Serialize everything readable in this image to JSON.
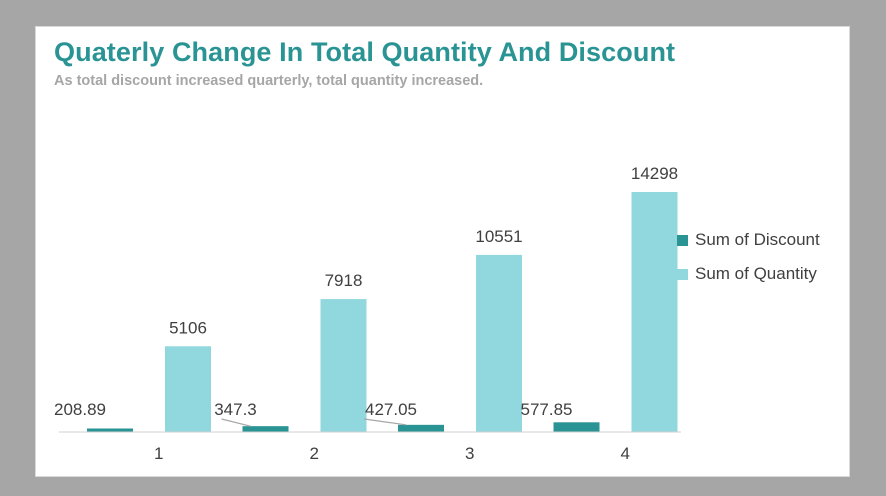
{
  "title": "Quaterly Change In Total Quantity And Discount",
  "subtitle": "As total discount increased quarterly, total quantity increased.",
  "colors": {
    "discount": "#2a9393",
    "quantity": "#91d7de",
    "title": "#2a9393",
    "subtitle": "#a6a6a6"
  },
  "chart_data": {
    "type": "bar",
    "categories": [
      "1",
      "2",
      "3",
      "4"
    ],
    "series": [
      {
        "name": "Sum of Discount",
        "values": [
          208.89,
          347.3,
          427.05,
          577.85
        ],
        "labels": [
          "208.89",
          "347.3",
          "427.05",
          "577.85"
        ]
      },
      {
        "name": "Sum of Quantity",
        "values": [
          5106,
          7918,
          10551,
          14298
        ],
        "labels": [
          "5106",
          "7918",
          "10551",
          "14298"
        ]
      }
    ],
    "title": "Quaterly Change In Total Quantity And Discount",
    "subtitle": "As total discount increased quarterly, total quantity increased.",
    "xlabel": "",
    "ylabel": "",
    "ylim": [
      0,
      14298
    ],
    "grid": false,
    "legend": "right"
  }
}
